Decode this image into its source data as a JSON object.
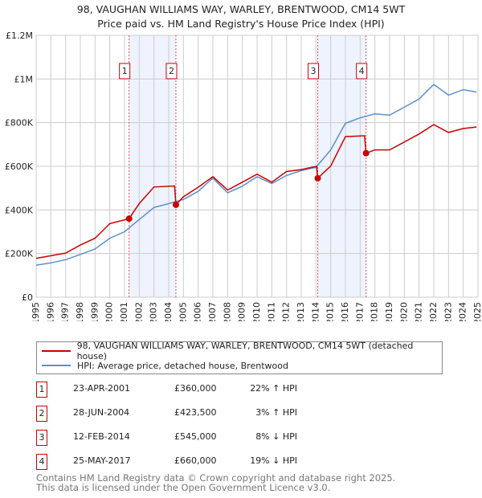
{
  "title": "98, VAUGHAN WILLIAMS WAY, WARLEY, BRENTWOOD, CM14 5WT",
  "subtitle": "Price paid vs. HM Land Registry's House Price Index (HPI)",
  "colors": {
    "property": "#cc0000",
    "hpi": "#5b8fd0",
    "shade": "#eef3fd",
    "grid": "#cccccc"
  },
  "chart_data": {
    "type": "line",
    "title": "98, VAUGHAN WILLIAMS WAY, WARLEY, BRENTWOOD, CM14 5WT — Price paid vs. HM Land Registry's House Price Index (HPI)",
    "xlim": [
      1995,
      2025
    ],
    "ylim": [
      0,
      1200000
    ],
    "x_ticks": [
      "1995",
      "1996",
      "1997",
      "1998",
      "1999",
      "2000",
      "2001",
      "2002",
      "2003",
      "2004",
      "2005",
      "2006",
      "2007",
      "2008",
      "2009",
      "2010",
      "2011",
      "2012",
      "2013",
      "2014",
      "2015",
      "2016",
      "2017",
      "2018",
      "2019",
      "2020",
      "2021",
      "2022",
      "2023",
      "2024",
      "2025"
    ],
    "y_ticks": [
      {
        "v": 0,
        "label": "£0"
      },
      {
        "v": 200000,
        "label": "£200K"
      },
      {
        "v": 400000,
        "label": "£400K"
      },
      {
        "v": 600000,
        "label": "£600K"
      },
      {
        "v": 800000,
        "label": "£800K"
      },
      {
        "v": 1000000,
        "label": "£1M"
      },
      {
        "v": 1200000,
        "label": "£1.2M"
      }
    ],
    "grid": true,
    "series": [
      {
        "name": "98, VAUGHAN WILLIAMS WAY, WARLEY, BRENTWOOD, CM14 5WT (detached house)",
        "color": "#cc0000",
        "x": [
          1995,
          1996,
          1997,
          1998,
          1999,
          2000,
          2001.31,
          2002,
          2003,
          2004.4,
          2004.49,
          2005,
          2006,
          2007,
          2008,
          2009,
          2010,
          2011,
          2012,
          2013,
          2014.05,
          2014.12,
          2015,
          2016,
          2017.3,
          2017.4,
          2018,
          2019,
          2020,
          2021,
          2022,
          2023,
          2024,
          2024.9
        ],
        "y": [
          178000,
          190000,
          202000,
          239000,
          270000,
          337000,
          360000,
          429000,
          505000,
          510000,
          423500,
          460000,
          504000,
          552000,
          491000,
          527000,
          564000,
          527000,
          576000,
          585000,
          600000,
          545000,
          601000,
          736000,
          740000,
          660000,
          675000,
          675000,
          711000,
          748000,
          791000,
          755000,
          773000,
          780000
        ]
      },
      {
        "name": "HPI: Average price, detached house, Brentwood",
        "color": "#5b8fd0",
        "x": [
          1995,
          1996,
          1997,
          1998,
          1999,
          2000,
          2001,
          2002,
          2003,
          2004,
          2005,
          2006,
          2007,
          2008,
          2009,
          2010,
          2011,
          2012,
          2013,
          2014,
          2015,
          2016,
          2017,
          2018,
          2019,
          2020,
          2021,
          2022,
          2023,
          2024,
          2024.9
        ],
        "y": [
          147000,
          157000,
          172000,
          196000,
          221000,
          270000,
          300000,
          356000,
          411000,
          429000,
          448000,
          485000,
          546000,
          478000,
          509000,
          552000,
          521000,
          558000,
          580000,
          595000,
          675000,
          797000,
          822000,
          840000,
          834000,
          871000,
          908000,
          975000,
          926000,
          951000,
          940000
        ]
      }
    ],
    "sales": [
      {
        "n": "1",
        "x": 2001.31,
        "y": 360000,
        "date": "23-APR-2001",
        "price": "£360,000",
        "delta": "22% ↑ HPI"
      },
      {
        "n": "2",
        "x": 2004.49,
        "y": 423500,
        "date": "28-JUN-2004",
        "price": "£423,500",
        "delta": "3% ↑ HPI"
      },
      {
        "n": "3",
        "x": 2014.12,
        "y": 545000,
        "date": "12-FEB-2014",
        "price": "£545,000",
        "delta": "8% ↓ HPI"
      },
      {
        "n": "4",
        "x": 2017.4,
        "y": 660000,
        "date": "25-MAY-2017",
        "price": "£660,000",
        "delta": "19% ↓ HPI"
      }
    ],
    "shaded_ranges": [
      [
        2001.31,
        2004.49
      ],
      [
        2014.12,
        2017.4
      ]
    ]
  },
  "legend": {
    "property": "98, VAUGHAN WILLIAMS WAY, WARLEY, BRENTWOOD, CM14 5WT (detached house)",
    "hpi": "HPI: Average price, detached house, Brentwood"
  },
  "footer": {
    "line1": "Contains HM Land Registry data © Crown copyright and database right 2025.",
    "line2": "This data is licensed under the Open Government Licence v3.0."
  }
}
